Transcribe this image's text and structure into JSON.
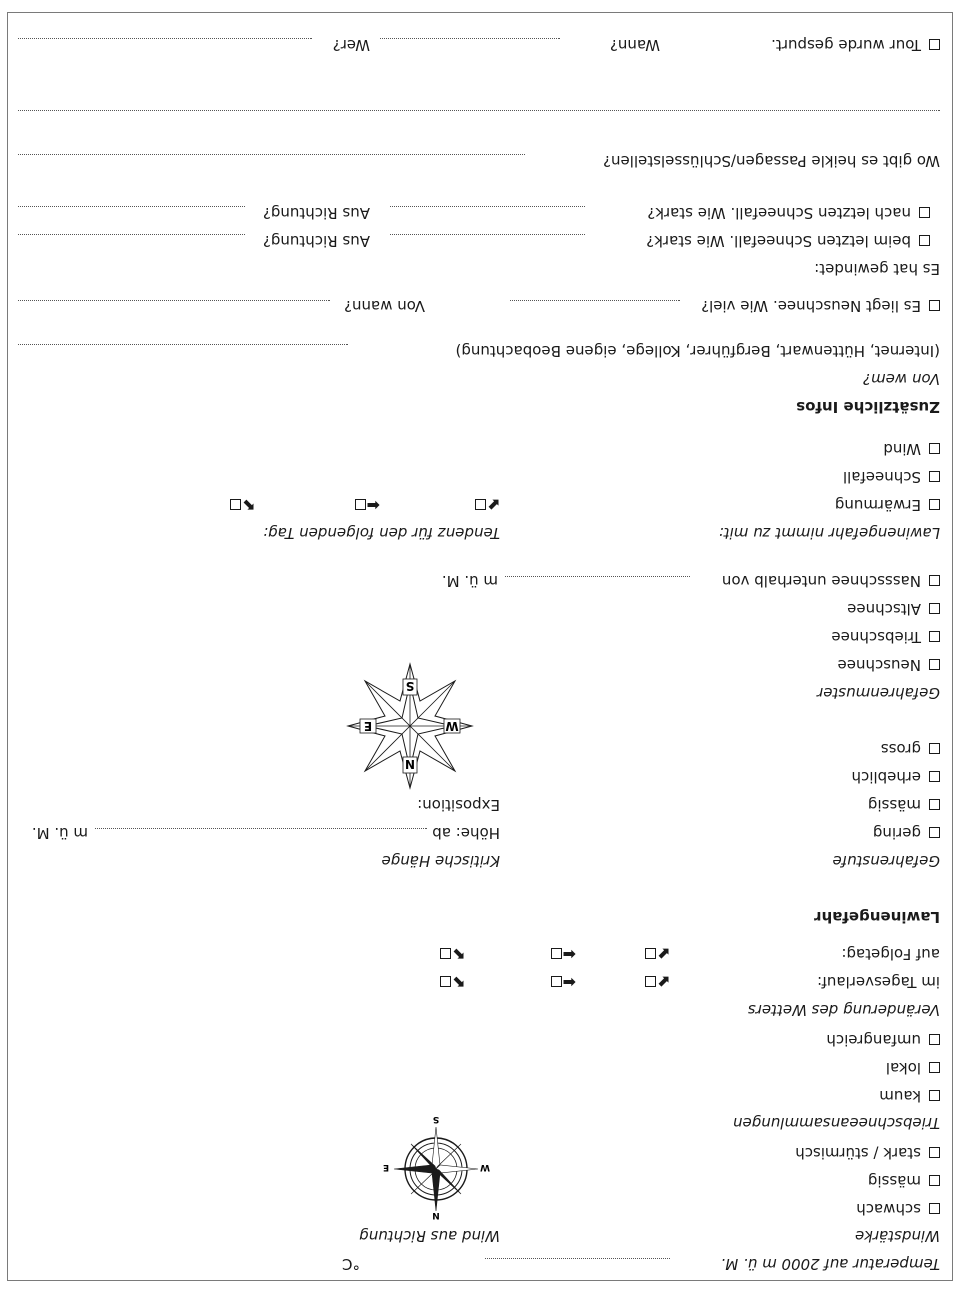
{
  "temperature": {
    "label": "Temperatur auf 2000 m ü. M.",
    "unit": "°C"
  },
  "wind_strength": {
    "title": "Windstärke",
    "options": [
      "schwach",
      "mässig",
      "stark / stürmisch"
    ]
  },
  "wind_direction": {
    "title": "Wind aus Richtung",
    "compass": {
      "n": "N",
      "s": "S",
      "e": "E",
      "w": "W"
    }
  },
  "drift_snow": {
    "title": "Triebschneeansammlungen",
    "options": [
      "kaum",
      "lokal",
      "umfangreich"
    ]
  },
  "weather_change": {
    "title": "Veränderung des Wetters",
    "rows": [
      "im Tagesverlauf:",
      "auf Folgetag:"
    ],
    "arrows": [
      "⬋",
      "⬅",
      "⬉"
    ]
  },
  "avalanche": {
    "heading": "Lawinengefahr",
    "level_title": "Gefahrenstufe",
    "levels": [
      "gering",
      "mässig",
      "erheblich",
      "gross"
    ],
    "critical_title": "Kritische Hänge",
    "height_label": "Höhe: ab",
    "height_unit": "m ü. M.",
    "exposition_label": "Exposition:",
    "compass": {
      "n": "N",
      "s": "S",
      "e": "E",
      "w": "W"
    },
    "patterns_title": "Gefahrenmuster",
    "patterns": [
      "Neuschnee",
      "Triebschnee",
      "Altschnee",
      "Nassschnee unterhalb von"
    ],
    "wet_unit": "m ü. M.",
    "increase_title": "Lawinengefahr nimmt zu mit:",
    "increase": [
      "Erwärmung",
      "Schneefall",
      "Wind"
    ],
    "trend_title": "Tendenz für den folgenden Tag:",
    "trend_arrows": [
      "⬋",
      "⬅",
      "⬉"
    ]
  },
  "extra": {
    "heading": "Zusätzliche Infos",
    "source_title": "Von wem?",
    "source_hint": "(Internet, Hüttenwart, Bergführer, Kollege, eigene Beobachtung)",
    "new_snow": "Es liegt Neuschnee. Wie viel?",
    "since_when": "Von wann?",
    "snowed": "Es hat gewindet:",
    "last_snowfall": "beim letzten Schneefall. Wie stark?",
    "after_snowfall": "nach letzten Schneefall. Wie stark?",
    "from_direction": "Aus Richtung?",
    "tricky": "Wo gibt es heikle Passagen/Schlüsselstellen?",
    "tour_closed": "Tour wurde gespurt.",
    "when": "Wann?",
    "who": "Wer?"
  }
}
